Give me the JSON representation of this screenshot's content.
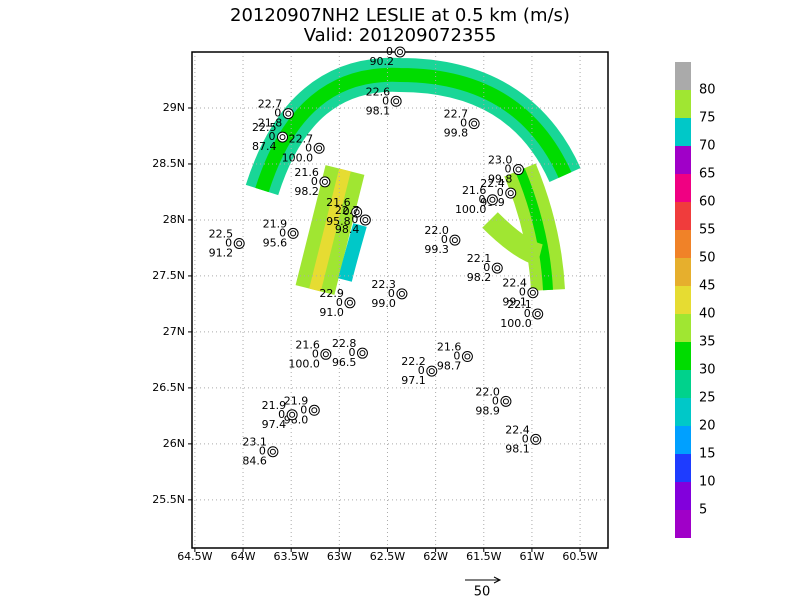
{
  "map": {
    "title": "20120907NH2 LESLIE at 0.5 km (m/s)",
    "subtitle": "Valid: 201209072355",
    "xlim": [
      -64.53,
      -60.21
    ],
    "ylim": [
      25.07,
      29.5
    ],
    "xticks": [
      {
        "value": -64.5,
        "label": "64.5W"
      },
      {
        "value": -64,
        "label": "64W"
      },
      {
        "value": -63.5,
        "label": "63.5W"
      },
      {
        "value": -63,
        "label": "63W"
      },
      {
        "value": -62.5,
        "label": "62.5W"
      },
      {
        "value": -62,
        "label": "62W"
      },
      {
        "value": -61.5,
        "label": "61.5W"
      },
      {
        "value": -61,
        "label": "61W"
      },
      {
        "value": -60.5,
        "label": "60.5W"
      }
    ],
    "yticks": [
      {
        "value": 25.5,
        "label": "25.5N"
      },
      {
        "value": 26,
        "label": "26N"
      },
      {
        "value": 26.5,
        "label": "26.5N"
      },
      {
        "value": 27,
        "label": "27N"
      },
      {
        "value": 27.5,
        "label": "27.5N"
      },
      {
        "value": 28,
        "label": "28N"
      },
      {
        "value": 28.5,
        "label": "28.5N"
      },
      {
        "value": 29,
        "label": "29N"
      }
    ],
    "grid": true,
    "colorbar": {
      "levels": [
        5,
        10,
        15,
        20,
        25,
        30,
        35,
        40,
        45,
        50,
        55,
        60,
        65,
        70,
        75,
        80
      ],
      "colors": [
        "#a000c8",
        "#8200dc",
        "#1e3cff",
        "#00a0ff",
        "#00c8c8",
        "#00d28c",
        "#00dc00",
        "#a0e632",
        "#e6dc32",
        "#e6af2d",
        "#f08228",
        "#f03c3c",
        "#f00082",
        "#a000c8",
        "#00c8c8",
        "#a0e632",
        "#aaaaaa"
      ]
    },
    "reference_vector": "50",
    "stations": [
      {
        "lon": -62.37,
        "lat": 29.5,
        "dew": "0",
        "rh": "90.2"
      },
      {
        "lon": -62.41,
        "lat": 29.06,
        "temp": "22.6",
        "dew": "0",
        "rh": "98.1"
      },
      {
        "lon": -63.53,
        "lat": 28.95,
        "temp": "22.7",
        "dew": "0",
        "rh": "21.8"
      },
      {
        "lon": -63.59,
        "lat": 28.74,
        "temp": "22.5",
        "dew": "0",
        "rh": "87.4"
      },
      {
        "lon": -63.21,
        "lat": 28.64,
        "temp": "22.7",
        "dew": "0",
        "rh": "100.0"
      },
      {
        "lon": -63.15,
        "lat": 28.34,
        "temp": "21.6",
        "dew": "0",
        "rh": "98.2"
      },
      {
        "lon": -62.82,
        "lat": 28.07,
        "temp": "21.6",
        "dew": "0",
        "rh": "95.8"
      },
      {
        "lon": -62.73,
        "lat": 28.0,
        "temp": "22.7",
        "dew": "0",
        "rh": "98.4"
      },
      {
        "lon": -64.04,
        "lat": 27.79,
        "temp": "22.5",
        "dew": "0",
        "rh": "91.2"
      },
      {
        "lon": -63.48,
        "lat": 27.88,
        "temp": "21.9",
        "dew": "0",
        "rh": "95.6"
      },
      {
        "lon": -61.6,
        "lat": 28.86,
        "temp": "22.7",
        "dew": "0",
        "rh": "99.8"
      },
      {
        "lon": -61.14,
        "lat": 28.45,
        "temp": "23.0",
        "dew": "0",
        "rh": "99.8"
      },
      {
        "lon": -61.22,
        "lat": 28.24,
        "temp": "22.4",
        "dew": "0",
        "rh": "99.9"
      },
      {
        "lon": -61.41,
        "lat": 28.18,
        "temp": "21.6",
        "dew": "0",
        "rh": "100.0"
      },
      {
        "lon": -61.8,
        "lat": 27.82,
        "temp": "22.0",
        "dew": "0",
        "rh": "99.3"
      },
      {
        "lon": -61.36,
        "lat": 27.57,
        "temp": "22.1",
        "dew": "0",
        "rh": "98.2"
      },
      {
        "lon": -60.99,
        "lat": 27.35,
        "temp": "22.4",
        "dew": "0",
        "rh": "99.1"
      },
      {
        "lon": -60.94,
        "lat": 27.16,
        "temp": "22.1",
        "dew": "0",
        "rh": "100.0"
      },
      {
        "lon": -62.35,
        "lat": 27.34,
        "temp": "22.3",
        "dew": "0",
        "rh": "99.0"
      },
      {
        "lon": -62.89,
        "lat": 27.26,
        "temp": "22.9",
        "dew": "0",
        "rh": "91.0"
      },
      {
        "lon": -63.14,
        "lat": 26.8,
        "temp": "21.6",
        "dew": "0",
        "rh": "100.0"
      },
      {
        "lon": -62.76,
        "lat": 26.81,
        "temp": "22.8",
        "dew": "0",
        "rh": "96.5"
      },
      {
        "lon": -62.04,
        "lat": 26.65,
        "temp": "22.2",
        "dew": "0",
        "rh": "97.1"
      },
      {
        "lon": -61.67,
        "lat": 26.78,
        "temp": "21.6",
        "dew": "0",
        "rh": "98.7"
      },
      {
        "lon": -61.27,
        "lat": 26.38,
        "temp": "22.0",
        "dew": "0",
        "rh": "98.9"
      },
      {
        "lon": -63.26,
        "lat": 26.3,
        "temp": "21.9",
        "dew": "0",
        "rh": "98.0"
      },
      {
        "lon": -63.49,
        "lat": 26.26,
        "temp": "21.9",
        "dew": "0",
        "rh": "97.4"
      },
      {
        "lon": -63.69,
        "lat": 25.93,
        "temp": "23.1",
        "dew": "0",
        "rh": "84.6"
      },
      {
        "lon": -60.96,
        "lat": 26.04,
        "temp": "22.4",
        "dew": "0",
        "rh": "98.1"
      }
    ]
  }
}
